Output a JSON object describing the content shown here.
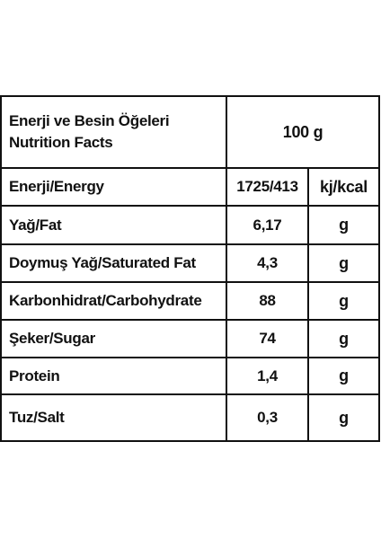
{
  "table": {
    "header": {
      "name_line1": "Enerji ve Besin Öğeleri",
      "name_line2": "Nutrition Facts",
      "amount": "100 g"
    },
    "rows": [
      {
        "name": "Enerji/Energy",
        "value": "1725/413",
        "unit": "kj/kcal"
      },
      {
        "name": "Yağ/Fat",
        "value": "6,17",
        "unit": "g"
      },
      {
        "name": "Doymuş Yağ/Saturated Fat",
        "value": "4,3",
        "unit": "g"
      },
      {
        "name": "Karbonhidrat/Carbohydrate",
        "value": "88",
        "unit": "g"
      },
      {
        "name": "Şeker/Sugar",
        "value": "74",
        "unit": "g"
      },
      {
        "name": "Protein",
        "value": "1,4",
        "unit": "g"
      },
      {
        "name": "Tuz/Salt",
        "value": "0,3",
        "unit": "g"
      }
    ]
  }
}
